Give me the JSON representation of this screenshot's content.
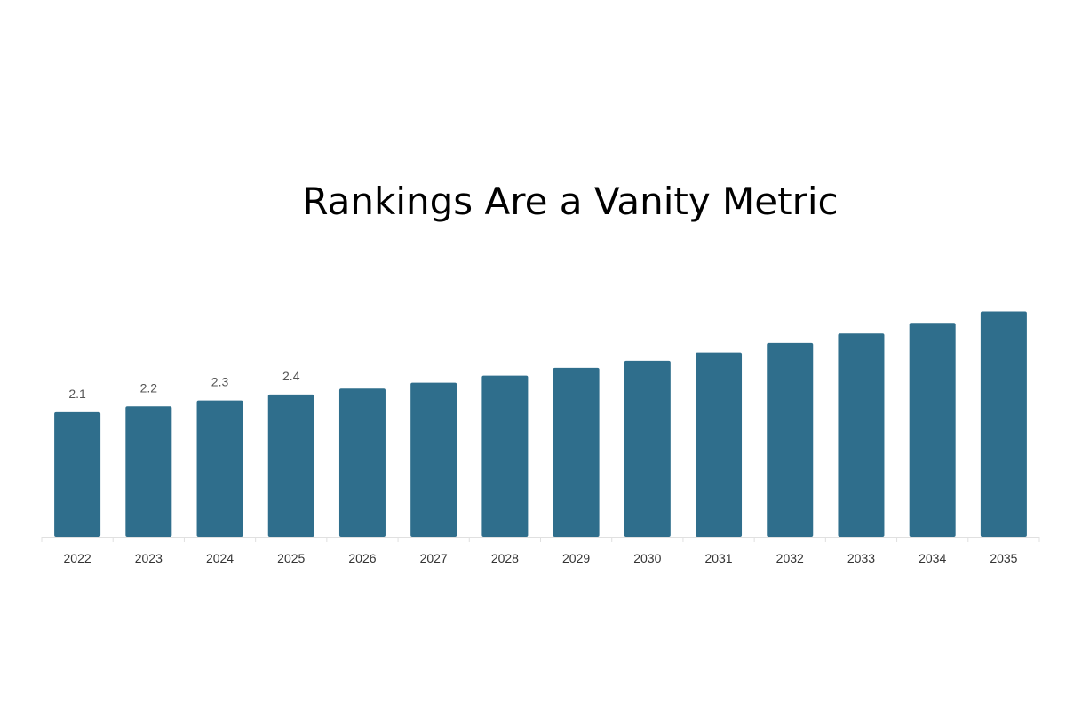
{
  "chart_data": {
    "type": "bar",
    "title": "Rankings Are a Vanity Metric",
    "categories": [
      "2022",
      "2023",
      "2024",
      "2025",
      "2026",
      "2027",
      "2028",
      "2029",
      "2030",
      "2031",
      "2032",
      "2033",
      "2034",
      "2035"
    ],
    "values": [
      2.1,
      2.2,
      2.3,
      2.4,
      2.5,
      2.6,
      2.72,
      2.85,
      2.97,
      3.11,
      3.27,
      3.43,
      3.61,
      3.8
    ],
    "data_labels": [
      "2.1",
      "2.2",
      "2.3",
      "2.4",
      "",
      "",
      "",
      "",
      "",
      "",
      "",
      "",
      "",
      ""
    ],
    "xlabel": "",
    "ylabel": "",
    "ylim": [
      0,
      4.4
    ],
    "grid": false,
    "legend": "none",
    "bar_color": "#2f6e8c"
  }
}
